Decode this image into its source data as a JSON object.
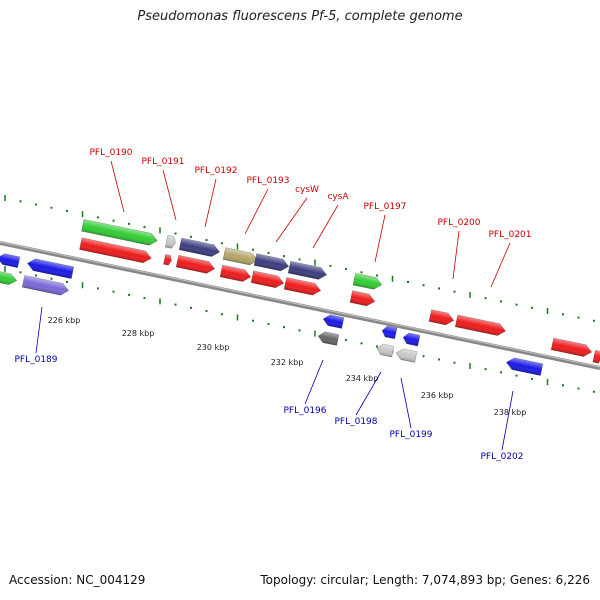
{
  "title": "Pseudomonas fluorescens Pf-5, complete genome",
  "accession": "Accession: NC_004129",
  "summary": "Topology: circular; Length: 7,074,893 bp; Genes: 6,226",
  "colors": {
    "forward_label": "#cc0000",
    "reverse_label": "#0000aa",
    "backbone": "#888888",
    "tick": "#1a7a1a",
    "cds": "#ee1c1c",
    "reverse_cds": "#1a1ae6",
    "green_feature": "#33cc33",
    "purple_feature": "#3d3d80",
    "tan_feature": "#b3a66b",
    "violet_feature": "#7b68d8",
    "grey_feature": "#666666",
    "light_grey_feature": "#c8c8c8"
  },
  "scale_ticks": [
    "226 kbp",
    "228 kbp",
    "230 kbp",
    "232 kbp",
    "234 kbp",
    "236 kbp",
    "238 kbp"
  ],
  "forward_labels": [
    "PFL_0190",
    "PFL_0191",
    "PFL_0192",
    "PFL_0193",
    "cysW",
    "cysA",
    "PFL_0197",
    "PFL_0200",
    "PFL_0201"
  ],
  "reverse_labels": [
    "PFL_0189",
    "PFL_0196",
    "PFL_0198",
    "PFL_0199",
    "PFL_0202"
  ]
}
